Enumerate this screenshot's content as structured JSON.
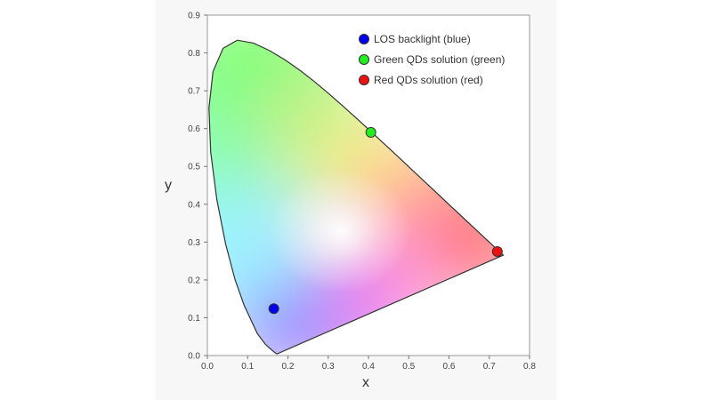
{
  "chart_data": {
    "type": "scatter",
    "title": "",
    "xlabel": "x",
    "ylabel": "y",
    "xlim": [
      0.0,
      0.8
    ],
    "ylim": [
      0.0,
      0.9
    ],
    "x_ticks": [
      "0.0",
      "0.1",
      "0.2",
      "0.3",
      "0.4",
      "0.5",
      "0.6",
      "0.7",
      "0.8"
    ],
    "y_ticks": [
      "0.0",
      "0.1",
      "0.2",
      "0.3",
      "0.4",
      "0.5",
      "0.6",
      "0.7",
      "0.8",
      "0.9"
    ],
    "grid": false,
    "legend_position": "top-right",
    "background": "CIE 1931 chromaticity diagram",
    "series": [
      {
        "name": "LOS backlight (blue)",
        "color": "#0000ee",
        "x": 0.165,
        "y": 0.124
      },
      {
        "name": "Green QDs solution (green)",
        "color": "#22ee22",
        "x": 0.406,
        "y": 0.59
      },
      {
        "name": "Red QDs solution (red)",
        "color": "#ee1111",
        "x": 0.72,
        "y": 0.275
      }
    ]
  }
}
